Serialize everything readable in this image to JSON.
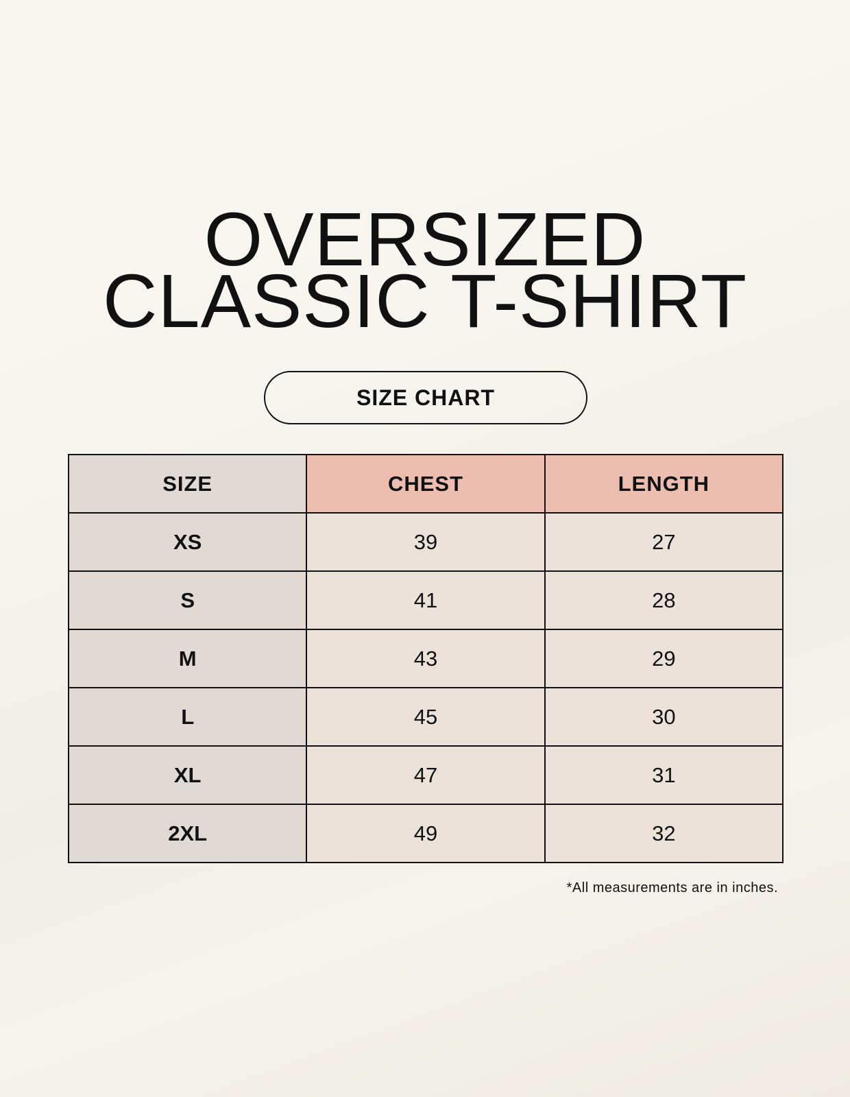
{
  "title": {
    "line1": "OVERSIZED",
    "line2": "CLASSIC T-SHIRT"
  },
  "badge": "SIZE CHART",
  "colors": {
    "size_column": "#e0d9d4",
    "header_highlight": "#edbdb0",
    "cell": "#ebe3da",
    "background": "#f8f6f0"
  },
  "table": {
    "headers": [
      "SIZE",
      "CHEST",
      "LENGTH"
    ],
    "rows": [
      {
        "size": "XS",
        "chest": "39",
        "length": "27"
      },
      {
        "size": "S",
        "chest": "41",
        "length": "28"
      },
      {
        "size": "M",
        "chest": "43",
        "length": "29"
      },
      {
        "size": "L",
        "chest": "45",
        "length": "30"
      },
      {
        "size": "XL",
        "chest": "47",
        "length": "31"
      },
      {
        "size": "2XL",
        "chest": "49",
        "length": "32"
      }
    ]
  },
  "note": "*All measurements are in inches."
}
